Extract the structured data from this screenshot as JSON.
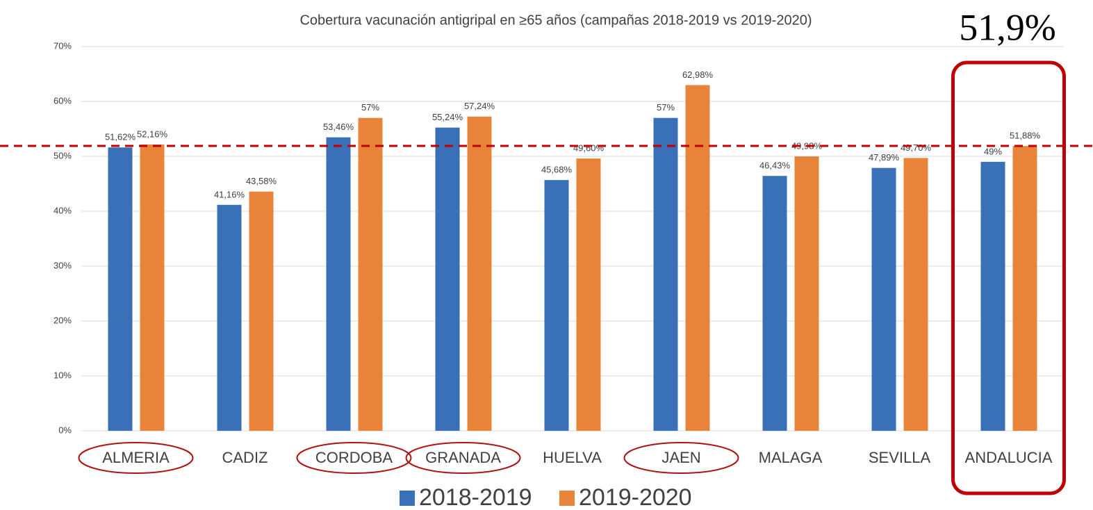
{
  "chart_data": {
    "type": "bar",
    "title": "Cobertura vacunación antigripal en ≥65 años (campañas 2018-2019 vs 2019-2020)",
    "categories": [
      "ALMERIA",
      "CADIZ",
      "CORDOBA",
      "GRANADA",
      "HUELVA",
      "JAEN",
      "MALAGA",
      "SEVILLA",
      "ANDALUCIA"
    ],
    "series": [
      {
        "name": "2018-2019",
        "color": "#3a70b8",
        "values": [
          51.62,
          41.16,
          53.46,
          55.24,
          45.68,
          57,
          46.43,
          47.89,
          49
        ],
        "value_labels": [
          "51,62%",
          "41,16%",
          "53,46%",
          "55,24%",
          "45,68%",
          "57%",
          "46,43%",
          "47,89%",
          "49%"
        ]
      },
      {
        "name": "2019-2020",
        "color": "#e8843a",
        "values": [
          52.16,
          43.58,
          57,
          57.24,
          49.6,
          62.98,
          49.98,
          49.7,
          51.88
        ],
        "value_labels": [
          "52,16%",
          "43,58%",
          "57%",
          "57,24%",
          "49,60%",
          "62,98%",
          "49,98%",
          "49,70%",
          "51,88%"
        ]
      }
    ],
    "ylim": [
      0,
      70
    ],
    "yticks": [
      {
        "value": 0,
        "label": "0%"
      },
      {
        "value": 10,
        "label": "10%"
      },
      {
        "value": 20,
        "label": "20%"
      },
      {
        "value": 30,
        "label": "30%"
      },
      {
        "value": 40,
        "label": "40%"
      },
      {
        "value": 50,
        "label": "50%"
      },
      {
        "value": 60,
        "label": "60%"
      },
      {
        "value": 70,
        "label": "70%"
      }
    ],
    "grid": true,
    "reference_line": {
      "value": 51.9,
      "label": "51,9%",
      "color": "#c00000"
    },
    "highlighted_categories": [
      0,
      2,
      3,
      5
    ],
    "boxed_category": 8
  }
}
